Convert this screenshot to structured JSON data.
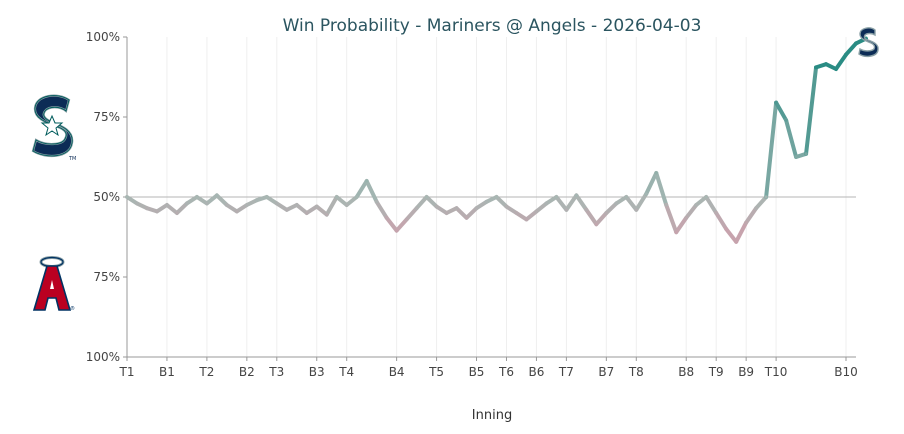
{
  "colors": {
    "accent": "#2a8c84",
    "title": "#2b5560",
    "neutral": "#a7b7b3",
    "away_line": "#2a8c84",
    "home_line": "#c7a3ad",
    "mariners_navy": "#0c2c56",
    "mariners_teal": "#005c5c",
    "angels_red": "#ba0021",
    "angels_navy": "#003263"
  },
  "logos": {
    "top": {
      "icon": "mariners-s-logo",
      "team": "Mariners"
    },
    "bottom": {
      "icon": "angels-a-halo-logo",
      "team": "Angels"
    },
    "end_marker": {
      "icon": "mariners-s-logo"
    }
  },
  "chart_data": {
    "type": "line",
    "title": "Win Probability - Mariners @ Angels - 2026-04-03",
    "xlabel": "Inning",
    "ylabel": "",
    "y_ticks": [
      "100%",
      "75%",
      "50%",
      "75%",
      "100%"
    ],
    "y_tick_values": [
      100,
      75,
      50,
      25,
      0
    ],
    "ylim": [
      0,
      100
    ],
    "xlim": [
      0,
      73
    ],
    "grid": "vertical",
    "x_ticks": [
      {
        "label": "T1",
        "x": 0
      },
      {
        "label": "B1",
        "x": 4
      },
      {
        "label": "T2",
        "x": 8
      },
      {
        "label": "B2",
        "x": 12
      },
      {
        "label": "T3",
        "x": 15
      },
      {
        "label": "B3",
        "x": 19
      },
      {
        "label": "T4",
        "x": 22
      },
      {
        "label": "B4",
        "x": 27
      },
      {
        "label": "T5",
        "x": 31
      },
      {
        "label": "B5",
        "x": 35
      },
      {
        "label": "T6",
        "x": 38
      },
      {
        "label": "B6",
        "x": 41
      },
      {
        "label": "T7",
        "x": 44
      },
      {
        "label": "B7",
        "x": 48
      },
      {
        "label": "T8",
        "x": 51
      },
      {
        "label": "B8",
        "x": 56
      },
      {
        "label": "T9",
        "x": 59
      },
      {
        "label": "B9",
        "x": 62
      },
      {
        "label": "T10",
        "x": 65
      },
      {
        "label": "B10",
        "x": 72
      }
    ],
    "series": [
      {
        "values": [
          50,
          48,
          46.5,
          45.5,
          47.5,
          45,
          48,
          50,
          48,
          50.5,
          47.5,
          45.5,
          47.5,
          49,
          50,
          48,
          46,
          47.5,
          45,
          47,
          44.5,
          50,
          47.5,
          50,
          55,
          48.5,
          43.5,
          39.5,
          43,
          46.5,
          50,
          47,
          45,
          46.5,
          43.5,
          46.5,
          48.5,
          50,
          47,
          45,
          43,
          45.5,
          48,
          50,
          46,
          50.5,
          46,
          41.5,
          45,
          48,
          50,
          46,
          51,
          57.5,
          47.5,
          39,
          43.5,
          47.5,
          50,
          45,
          40,
          36,
          42,
          46.5,
          50,
          79.5,
          74,
          62.5,
          63.5,
          90.5,
          91.5,
          90,
          94.5,
          98,
          99.5
        ]
      }
    ]
  }
}
